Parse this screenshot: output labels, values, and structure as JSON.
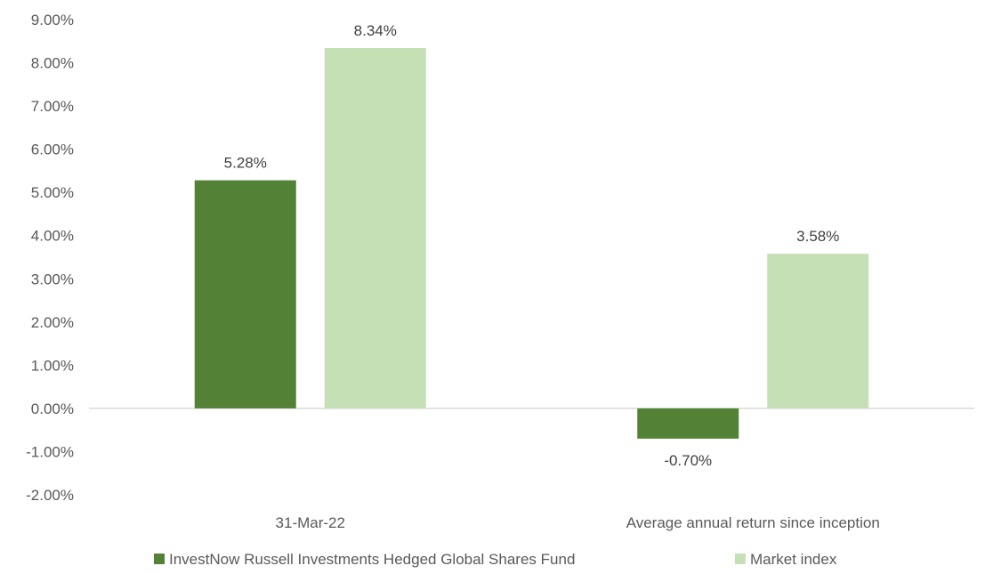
{
  "chart_data": {
    "type": "bar",
    "categories": [
      "31-Mar-22",
      "Average annual return since inception"
    ],
    "series": [
      {
        "name": "InvestNow Russell Investments Hedged Global Shares Fund",
        "values": [
          5.28,
          -0.7
        ],
        "labels": [
          "5.28%",
          "-0.70%"
        ],
        "color": "#538135"
      },
      {
        "name": "Market index",
        "values": [
          8.34,
          3.58
        ],
        "labels": [
          "8.34%",
          "3.58%"
        ],
        "color": "#C5E0B4"
      }
    ],
    "ylim": [
      -2,
      9
    ],
    "yticks": [
      9,
      8,
      7,
      6,
      5,
      4,
      3,
      2,
      1,
      0,
      -1,
      -2
    ],
    "ytick_labels": [
      "9.00%",
      "8.00%",
      "7.00%",
      "6.00%",
      "5.00%",
      "4.00%",
      "3.00%",
      "2.00%",
      "1.00%",
      "0.00%",
      "-1.00%",
      "-2.00%"
    ],
    "title": "",
    "xlabel": "",
    "ylabel": "",
    "grid": false,
    "legend": "bottom",
    "axis_color": "#D9D9D9"
  }
}
